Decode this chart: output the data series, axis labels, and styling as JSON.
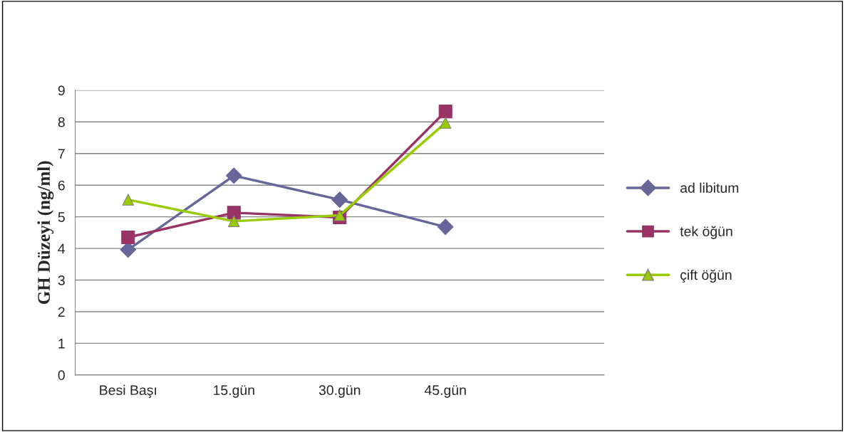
{
  "chart_data": {
    "type": "line",
    "ylabel": "GH Düzeyi (ng/ml)",
    "categories": [
      "Besi Başı",
      "15.gün",
      "30.gün",
      "45.gün",
      null
    ],
    "series": [
      {
        "name": "ad libitum",
        "color": "#666699",
        "marker": "diamond",
        "values": [
          3.96,
          6.3,
          5.54,
          4.68,
          null
        ]
      },
      {
        "name": "tek öğün",
        "color": "#993366",
        "marker": "square",
        "values": [
          4.35,
          5.13,
          4.98,
          8.33,
          null
        ]
      },
      {
        "name": "çift öğün",
        "color": "#99cc00",
        "marker": "triangle",
        "values": [
          5.54,
          4.86,
          5.05,
          7.97,
          null
        ]
      }
    ],
    "ylim": [
      0,
      9
    ],
    "yticks": [
      0,
      1,
      2,
      3,
      4,
      5,
      6,
      7,
      8,
      9
    ],
    "grid": "y",
    "legend": "right"
  }
}
